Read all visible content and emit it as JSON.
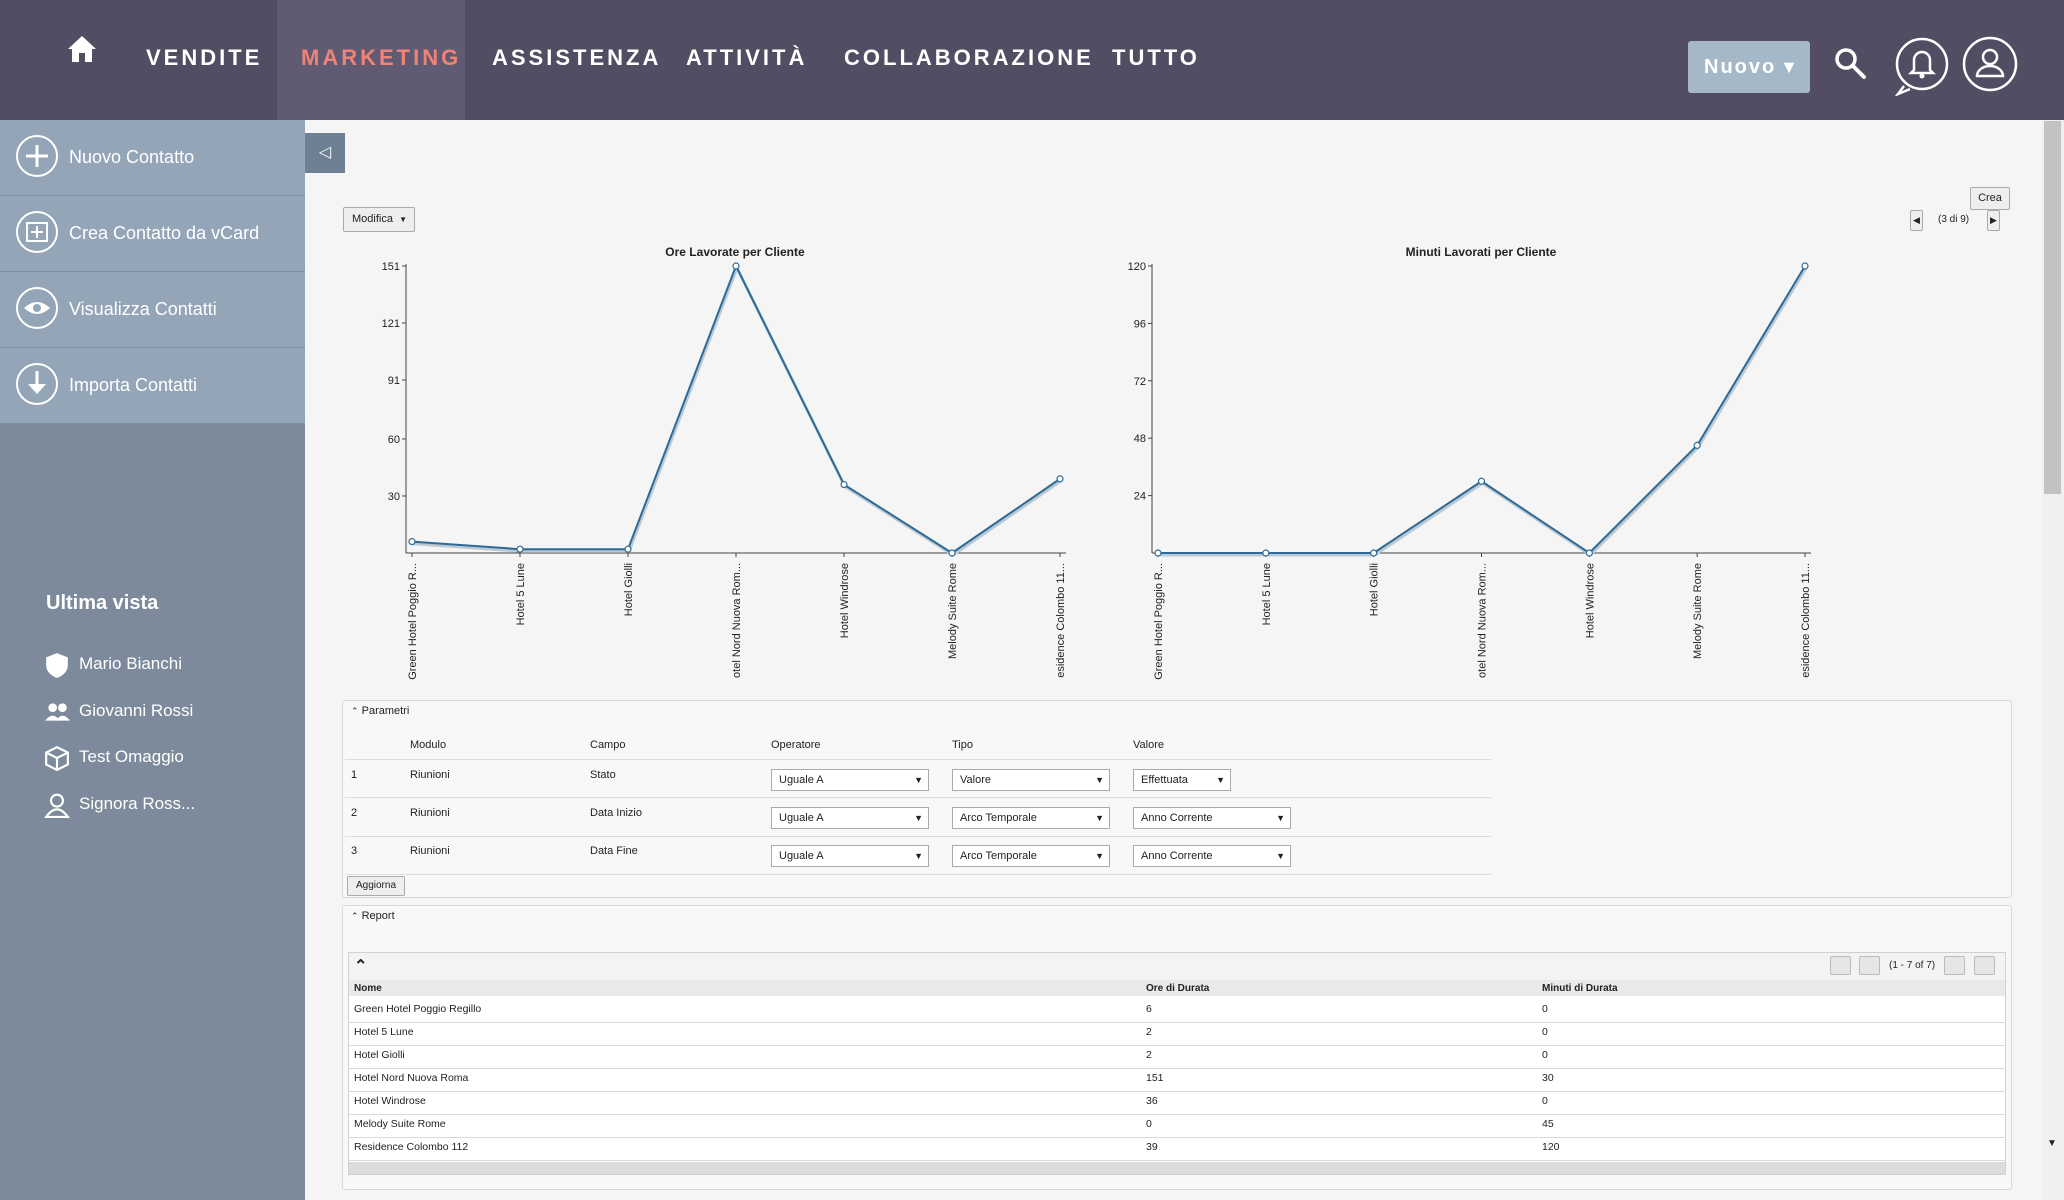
{
  "nav": {
    "items": [
      "VENDITE",
      "MARKETING",
      "ASSISTENZA",
      "ATTIVITÀ",
      "COLLABORAZIONE",
      "TUTTO"
    ],
    "active": "MARKETING",
    "new_button": "Nuovo"
  },
  "sidebar": {
    "actions": [
      {
        "label": "Nuovo Contatto",
        "icon": "plus-circle-icon"
      },
      {
        "label": "Crea Contatto da vCard",
        "icon": "add-card-icon"
      },
      {
        "label": "Visualizza Contatti",
        "icon": "eye-icon"
      },
      {
        "label": "Importa Contatti",
        "icon": "download-icon"
      }
    ],
    "recent_title": "Ultima vista",
    "recent": [
      {
        "label": "Mario Bianchi",
        "icon": "shield-icon"
      },
      {
        "label": "Giovanni Rossi",
        "icon": "users-icon"
      },
      {
        "label": "Test Omaggio",
        "icon": "cube-icon"
      },
      {
        "label": "Signora Ross...",
        "icon": "user-icon"
      }
    ]
  },
  "toolbar": {
    "modify_label": "Modifica",
    "create_label": "Crea",
    "pager": "(3 di 9)"
  },
  "chart_data": [
    {
      "type": "line",
      "title": "Ore Lavorate per Cliente",
      "categories": [
        "Green Hotel Poggio R...",
        "Hotel 5 Lune",
        "Hotel Giolli",
        "otel Nord Nuova Rom...",
        "Hotel Windrose",
        "Melody Suite Rome",
        "esidence Colombo 11..."
      ],
      "values": [
        6,
        2,
        2,
        151,
        36,
        0,
        39
      ],
      "yticks": [
        30,
        60,
        91,
        121,
        151
      ],
      "ylim": [
        0,
        151
      ],
      "color": "#2c6b99"
    },
    {
      "type": "line",
      "title": "Minuti Lavorati per Cliente",
      "categories": [
        "Green Hotel Poggio R...",
        "Hotel 5 Lune",
        "Hotel Giolli",
        "otel Nord Nuova Rom...",
        "Hotel Windrose",
        "Melody Suite Rome",
        "esidence Colombo 11..."
      ],
      "values": [
        0,
        0,
        0,
        30,
        0,
        45,
        120
      ],
      "yticks": [
        24,
        48,
        72,
        96,
        120
      ],
      "ylim": [
        0,
        120
      ],
      "color": "#2c6b99"
    }
  ],
  "params": {
    "title": "Parametri",
    "headers": [
      "Modulo",
      "Campo",
      "Operatore",
      "Tipo",
      "Valore"
    ],
    "rows": [
      {
        "n": "1",
        "modulo": "Riunioni",
        "campo": "Stato",
        "operatore": "Uguale A",
        "tipo": "Valore",
        "valore": "Effettuata"
      },
      {
        "n": "2",
        "modulo": "Riunioni",
        "campo": "Data Inizio",
        "operatore": "Uguale A",
        "tipo": "Arco Temporale",
        "valore": "Anno Corrente"
      },
      {
        "n": "3",
        "modulo": "Riunioni",
        "campo": "Data Fine",
        "operatore": "Uguale A",
        "tipo": "Arco Temporale",
        "valore": "Anno Corrente"
      }
    ],
    "update_label": "Aggiorna"
  },
  "report": {
    "title": "Report",
    "pager": "(1 - 7 of 7)",
    "headers": [
      "Nome",
      "Ore di Durata",
      "Minuti di Durata"
    ],
    "rows": [
      [
        "Green Hotel Poggio Regillo",
        "6",
        "0"
      ],
      [
        "Hotel 5 Lune",
        "2",
        "0"
      ],
      [
        "Hotel Giolli",
        "2",
        "0"
      ],
      [
        "Hotel Nord Nuova Roma",
        "151",
        "30"
      ],
      [
        "Hotel Windrose",
        "36",
        "0"
      ],
      [
        "Melody Suite Rome",
        "0",
        "45"
      ],
      [
        "Residence Colombo 112",
        "39",
        "120"
      ]
    ]
  }
}
